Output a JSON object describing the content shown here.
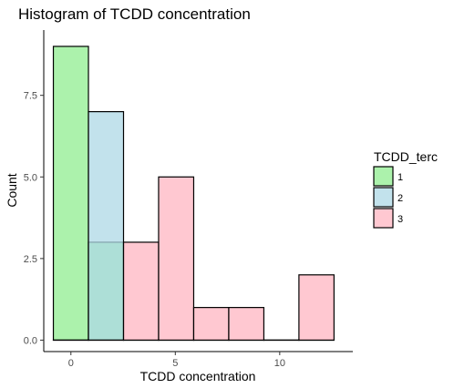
{
  "chart_data": {
    "type": "bar",
    "title": "Histogram of TCDD concentration",
    "xlabel": "TCDD concentration",
    "ylabel": "Count",
    "xlim": [
      -1.3,
      13.5
    ],
    "ylim": [
      -0.35,
      9.5
    ],
    "x_ticks": [
      {
        "value": 0,
        "label": "0"
      },
      {
        "value": 5,
        "label": "5"
      },
      {
        "value": 10,
        "label": "10"
      }
    ],
    "y_ticks": [
      {
        "value": 0,
        "label": "0.0"
      },
      {
        "value": 2.5,
        "label": "2.5"
      },
      {
        "value": 5,
        "label": "5.0"
      },
      {
        "value": 7.5,
        "label": "7.5"
      }
    ],
    "grid": false,
    "legend": {
      "title": "TCDD_terc",
      "position": "right",
      "entries": [
        {
          "label": "1",
          "color": "#90ee90"
        },
        {
          "label": "2",
          "color": "#add8e6"
        },
        {
          "label": "3",
          "color": "#ffb6c1"
        }
      ]
    },
    "bin_edges": [
      -0.84,
      0.84,
      2.52,
      4.2,
      5.88,
      7.56,
      9.24,
      10.92,
      12.6
    ],
    "series": [
      {
        "name": "1",
        "color": "#90ee90",
        "values": [
          9,
          3,
          0,
          0,
          0,
          0,
          0,
          0
        ]
      },
      {
        "name": "2",
        "color": "#add8e6",
        "values": [
          0,
          7,
          0,
          0,
          0,
          0,
          0,
          0
        ]
      },
      {
        "name": "3",
        "color": "#ffb6c1",
        "values": [
          0,
          0,
          3,
          5,
          1,
          1,
          0,
          2
        ]
      }
    ]
  }
}
